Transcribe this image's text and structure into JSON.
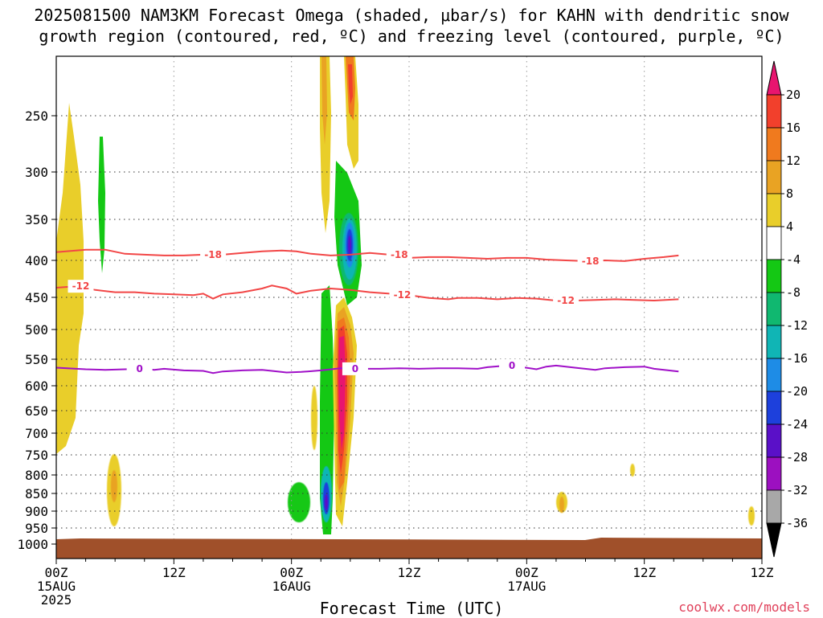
{
  "title": {
    "line1": "2025081500 NAM3KM Forecast Omega (shaded, μbar/s) for KAHN with dendritic snow",
    "line2": "growth region (contoured, red, ºC) and freezing level (contoured, purple, ºC)"
  },
  "credit": "coolwx.com/models",
  "chart_data": {
    "type": "heatmap",
    "xlabel": "Forecast Time (UTC)",
    "ylabel": "",
    "x_range_hours": [
      0,
      72
    ],
    "y_range_hPa": [
      200,
      1000
    ],
    "x_ticks": [
      {
        "hour": 0,
        "lines": [
          "00Z",
          "15AUG",
          "2025"
        ]
      },
      {
        "hour": 12,
        "lines": [
          "12Z"
        ]
      },
      {
        "hour": 24,
        "lines": [
          "00Z",
          "16AUG"
        ]
      },
      {
        "hour": 36,
        "lines": [
          "12Z"
        ]
      },
      {
        "hour": 48,
        "lines": [
          "00Z",
          "17AUG"
        ]
      },
      {
        "hour": 60,
        "lines": [
          "12Z"
        ]
      }
    ],
    "y_ticks": [
      250,
      300,
      350,
      400,
      450,
      500,
      550,
      600,
      650,
      700,
      750,
      800,
      850,
      900,
      950,
      1000
    ],
    "grid": true,
    "colorbar": {
      "units": "μbar/s",
      "labels": [
        "20",
        "16",
        "12",
        "8",
        "4",
        "-4",
        "-8",
        "-12",
        "-16",
        "-20",
        "-24",
        "-28",
        "-32",
        "-36"
      ],
      "colors_top_to_bottom": [
        "#e8156f",
        "#f2402c",
        "#f07a1e",
        "#e9a323",
        "#e9ce2a",
        "#ffffff",
        "#14c814",
        "#10b870",
        "#10b5b5",
        "#1e8ce6",
        "#1d40dc",
        "#5a10c8",
        "#9c10c0",
        "#a8a8a8",
        "#000000"
      ]
    },
    "contours": [
      {
        "name": "-18",
        "color": "#f24646",
        "labels": [
          "-18",
          "-18",
          "-18"
        ],
        "points": [
          [
            0,
            390
          ],
          [
            3,
            387
          ],
          [
            5,
            387
          ],
          [
            7,
            392
          ],
          [
            9,
            393
          ],
          [
            11,
            394
          ],
          [
            13,
            394
          ],
          [
            15,
            393
          ],
          [
            17,
            393
          ],
          [
            19,
            391
          ],
          [
            21,
            389
          ],
          [
            23,
            388
          ],
          [
            24.5,
            389
          ],
          [
            26,
            392
          ],
          [
            28,
            394
          ],
          [
            30,
            393
          ],
          [
            32,
            391
          ],
          [
            34,
            393
          ],
          [
            36,
            397
          ],
          [
            38,
            396
          ],
          [
            40,
            396
          ],
          [
            42,
            397
          ],
          [
            44,
            398
          ],
          [
            46,
            397
          ],
          [
            48,
            397
          ],
          [
            50,
            399
          ],
          [
            52,
            400
          ],
          [
            54,
            401
          ],
          [
            56,
            400
          ],
          [
            58,
            401
          ],
          [
            60,
            398
          ],
          [
            62,
            396
          ],
          [
            63.5,
            394
          ]
        ]
      },
      {
        "name": "-12",
        "color": "#f24646",
        "labels": [
          "-12",
          "-12",
          "-12"
        ],
        "points": [
          [
            0,
            437
          ],
          [
            2,
            435
          ],
          [
            4,
            440
          ],
          [
            6,
            443
          ],
          [
            8,
            443
          ],
          [
            10,
            445
          ],
          [
            12,
            446
          ],
          [
            14,
            447
          ],
          [
            15,
            445
          ],
          [
            16,
            452
          ],
          [
            17,
            446
          ],
          [
            19,
            443
          ],
          [
            21,
            438
          ],
          [
            22,
            434
          ],
          [
            23.5,
            438
          ],
          [
            24.5,
            445
          ],
          [
            26,
            441
          ],
          [
            28,
            438
          ],
          [
            30,
            440
          ],
          [
            32,
            443
          ],
          [
            34,
            445
          ],
          [
            36,
            447
          ],
          [
            38,
            451
          ],
          [
            40,
            453
          ],
          [
            41,
            451
          ],
          [
            43,
            451
          ],
          [
            45,
            453
          ],
          [
            47,
            451
          ],
          [
            49,
            452
          ],
          [
            51,
            455
          ],
          [
            53,
            455
          ],
          [
            55,
            454
          ],
          [
            57,
            453
          ],
          [
            59,
            454
          ],
          [
            61,
            455
          ],
          [
            63.5,
            453
          ]
        ]
      },
      {
        "name": "0",
        "color": "#a010c8",
        "labels": [
          "0",
          "0",
          "0"
        ],
        "points": [
          [
            0,
            566
          ],
          [
            3,
            569
          ],
          [
            5,
            570
          ],
          [
            7,
            569
          ],
          [
            9,
            568
          ],
          [
            10,
            570
          ],
          [
            11,
            568
          ],
          [
            13,
            571
          ],
          [
            15,
            572
          ],
          [
            16,
            576
          ],
          [
            17,
            573
          ],
          [
            19,
            571
          ],
          [
            21,
            570
          ],
          [
            22,
            572
          ],
          [
            23.5,
            575
          ],
          [
            25,
            574
          ],
          [
            27,
            571
          ],
          [
            29,
            567
          ],
          [
            31,
            568
          ],
          [
            33,
            568
          ],
          [
            35,
            567
          ],
          [
            37,
            568
          ],
          [
            39,
            567
          ],
          [
            41,
            567
          ],
          [
            43,
            568
          ],
          [
            44,
            565
          ],
          [
            46,
            562
          ],
          [
            48,
            566
          ],
          [
            49,
            569
          ],
          [
            50,
            564
          ],
          [
            51,
            562
          ],
          [
            53,
            566
          ],
          [
            55,
            570
          ],
          [
            56,
            567
          ],
          [
            58,
            565
          ],
          [
            60,
            564
          ],
          [
            61,
            568
          ],
          [
            63.5,
            573
          ]
        ]
      }
    ],
    "ground_level_hPa": 985
  }
}
